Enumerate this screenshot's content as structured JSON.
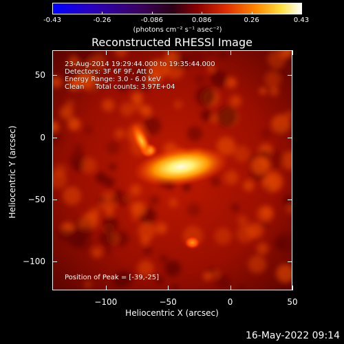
{
  "colorbar": {
    "ticks": [
      "-0.43",
      "-0.26",
      "-0.086",
      "0.086",
      "0.26",
      "0.43"
    ],
    "units": "(photons cm⁻² s⁻¹ asec⁻²)"
  },
  "chart_data": {
    "type": "heatmap",
    "title": "Reconstructed RHESSI Image",
    "xlabel": "Heliocentric X (arcsec)",
    "ylabel": "Heliocentric Y (arcsec)",
    "xlim": [
      -143,
      50
    ],
    "ylim": [
      -123,
      70
    ],
    "xticks": [
      "−100",
      "−50",
      "0",
      "50"
    ],
    "yticks": [
      "50",
      "0",
      "−50",
      "−100"
    ],
    "value_range": [
      -0.43,
      0.43
    ],
    "peak": [
      -39,
      -25
    ],
    "sources": [
      {
        "x": -40,
        "y": -23,
        "intensity": 0.43
      },
      {
        "x": -66,
        "y": -10,
        "intensity": 0.25
      },
      {
        "x": -31,
        "y": -84,
        "intensity": 0.18
      }
    ],
    "annotations": {
      "time": "23-Aug-2014 19:29:44.000 to 19:35:44.000",
      "detectors": "Detectors: 3F 6F 9F, Att 0",
      "energy": "Energy Range: 3.0 - 6.0 keV",
      "method": "Clean",
      "counts": "Total counts: 3.97E+04",
      "peak_label": "Position of Peak = [-39,-25]"
    }
  },
  "footer": {
    "timestamp": "16-May-2022 09:14"
  }
}
